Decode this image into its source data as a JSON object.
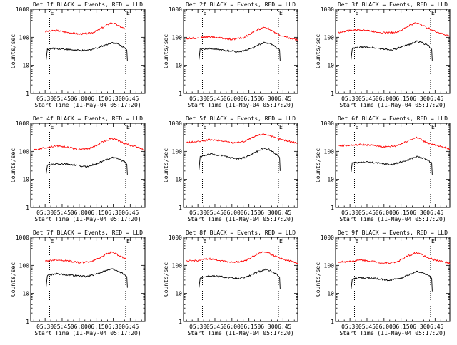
{
  "chart_data": [
    {
      "type": "line",
      "title": "Det 1f BLACK = Events, RED = LLD",
      "xlabel": "Start Time (11-May-04 05:17:20)",
      "ylabel": "Counts/sec",
      "yscale": "log",
      "ylim": [
        1,
        1000
      ],
      "y_ticks": [
        "1",
        "10",
        "100",
        "1000"
      ],
      "x_ticks": [
        "05:30",
        "05:45",
        "06:00",
        "06:15",
        "06:30",
        "06:45"
      ],
      "x_ticks_minutes": [
        30,
        45,
        60,
        75,
        90,
        105
      ],
      "x_range_minutes": [
        17.33,
        118
      ],
      "markers": [
        {
          "label": "E",
          "x_minutes": 34
        },
        {
          "label": "E",
          "x_minutes": 101
        }
      ],
      "series": [
        {
          "color": "#ff0000",
          "x_minutes": [
            30,
            40,
            50,
            60,
            70,
            76,
            82,
            88,
            92,
            96,
            101
          ],
          "values": [
            160,
            175,
            150,
            130,
            140,
            175,
            240,
            330,
            300,
            240,
            200
          ]
        },
        {
          "color": "#000000",
          "x_minutes": [
            31,
            32,
            40,
            50,
            60,
            66,
            72,
            78,
            84,
            89,
            94,
            99,
            102,
            102.5
          ],
          "values": [
            16,
            38,
            40,
            37,
            34,
            33,
            38,
            45,
            55,
            65,
            58,
            45,
            35,
            14
          ]
        }
      ]
    },
    {
      "type": "line",
      "title": "Det 2f BLACK = Events, RED = LLD",
      "xlabel": "Start Time (11-May-04 05:17:20)",
      "ylabel": "Counts/sec",
      "yscale": "log",
      "ylim": [
        1,
        1000
      ],
      "y_ticks": [
        "1",
        "10",
        "100",
        "1000"
      ],
      "x_ticks": [
        "05:30",
        "05:45",
        "06:00",
        "06:15",
        "06:30",
        "06:45"
      ],
      "x_ticks_minutes": [
        30,
        45,
        60,
        75,
        90,
        105
      ],
      "x_range_minutes": [
        17.33,
        118
      ],
      "markers": [
        {
          "label": "E",
          "x_minutes": 34
        },
        {
          "label": "E",
          "x_minutes": 101
        }
      ],
      "series": [
        {
          "color": "#ff0000",
          "x_minutes": [
            20,
            30,
            40,
            50,
            60,
            70,
            76,
            82,
            88,
            92,
            96,
            104,
            112,
            118
          ],
          "values": [
            90,
            95,
            105,
            95,
            85,
            95,
            130,
            180,
            230,
            210,
            160,
            110,
            90,
            80
          ]
        },
        {
          "color": "#000000",
          "x_minutes": [
            31,
            32,
            40,
            50,
            60,
            66,
            72,
            78,
            84,
            89,
            94,
            99,
            102,
            102.5
          ],
          "values": [
            16,
            38,
            40,
            36,
            32,
            30,
            35,
            40,
            55,
            65,
            58,
            45,
            35,
            14
          ]
        }
      ]
    },
    {
      "type": "line",
      "title": "Det 3f BLACK = Events, RED = LLD",
      "xlabel": "Start Time (11-May-04 05:17:20)",
      "ylabel": "Counts/sec",
      "yscale": "log",
      "ylim": [
        1,
        1000
      ],
      "y_ticks": [
        "1",
        "10",
        "100",
        "1000"
      ],
      "x_ticks": [
        "05:30",
        "05:45",
        "06:00",
        "06:15",
        "06:30",
        "06:45"
      ],
      "x_ticks_minutes": [
        30,
        45,
        60,
        75,
        90,
        105
      ],
      "x_range_minutes": [
        17.33,
        118
      ],
      "markers": [
        {
          "label": "E",
          "x_minutes": 34
        },
        {
          "label": "E",
          "x_minutes": 101
        }
      ],
      "series": [
        {
          "color": "#ff0000",
          "x_minutes": [
            20,
            30,
            40,
            50,
            60,
            70,
            76,
            82,
            88,
            92,
            96,
            104,
            112,
            118
          ],
          "values": [
            150,
            175,
            190,
            165,
            145,
            150,
            185,
            260,
            330,
            300,
            240,
            170,
            130,
            110
          ]
        },
        {
          "color": "#000000",
          "x_minutes": [
            31,
            32,
            40,
            50,
            60,
            66,
            72,
            78,
            84,
            89,
            94,
            99,
            102,
            102.5
          ],
          "values": [
            16,
            40,
            44,
            43,
            38,
            36,
            40,
            48,
            60,
            72,
            64,
            50,
            38,
            14
          ]
        }
      ]
    },
    {
      "type": "line",
      "title": "Det 4f BLACK = Events, RED = LLD",
      "xlabel": "Start Time (11-May-04 05:17:20)",
      "ylabel": "Counts/sec",
      "yscale": "log",
      "ylim": [
        1,
        1000
      ],
      "y_ticks": [
        "1",
        "10",
        "100",
        "1000"
      ],
      "x_ticks": [
        "05:30",
        "05:45",
        "06:00",
        "06:15",
        "06:30",
        "06:45"
      ],
      "x_ticks_minutes": [
        30,
        45,
        60,
        75,
        90,
        105
      ],
      "x_range_minutes": [
        17.33,
        118
      ],
      "markers": [
        {
          "label": "E",
          "x_minutes": 34
        },
        {
          "label": "E",
          "x_minutes": 101
        }
      ],
      "series": [
        {
          "color": "#ff0000",
          "x_minutes": [
            20,
            30,
            40,
            50,
            60,
            70,
            76,
            82,
            88,
            92,
            96,
            104,
            112,
            118
          ],
          "values": [
            110,
            135,
            160,
            140,
            115,
            130,
            170,
            230,
            290,
            270,
            220,
            170,
            140,
            110
          ]
        },
        {
          "color": "#000000",
          "x_minutes": [
            31,
            32,
            40,
            50,
            60,
            66,
            72,
            78,
            84,
            89,
            94,
            99,
            102,
            102.5
          ],
          "values": [
            16,
            32,
            36,
            35,
            31,
            28,
            33,
            40,
            50,
            62,
            55,
            45,
            35,
            14
          ]
        }
      ]
    },
    {
      "type": "line",
      "title": "Det 5f BLACK = Events, RED = LLD",
      "xlabel": "Start Time (11-May-04 05:17:20)",
      "ylabel": "Counts/sec",
      "yscale": "log",
      "ylim": [
        1,
        1000
      ],
      "y_ticks": [
        "1",
        "10",
        "100",
        "1000"
      ],
      "x_ticks": [
        "05:30",
        "05:45",
        "06:00",
        "06:15",
        "06:30",
        "06:45"
      ],
      "x_ticks_minutes": [
        30,
        45,
        60,
        75,
        90,
        105
      ],
      "x_range_minutes": [
        17.33,
        118
      ],
      "markers": [
        {
          "label": "E",
          "x_minutes": 34
        },
        {
          "label": "E",
          "x_minutes": 101
        }
      ],
      "series": [
        {
          "color": "#ff0000",
          "x_minutes": [
            20,
            30,
            40,
            50,
            60,
            70,
            76,
            82,
            88,
            92,
            96,
            104,
            112,
            118
          ],
          "values": [
            205,
            220,
            260,
            240,
            205,
            220,
            280,
            360,
            420,
            390,
            320,
            260,
            220,
            200
          ]
        },
        {
          "color": "#000000",
          "x_minutes": [
            31,
            32,
            40,
            50,
            60,
            66,
            72,
            78,
            84,
            89,
            94,
            99,
            102,
            102.5
          ],
          "values": [
            22,
            65,
            80,
            72,
            58,
            55,
            62,
            80,
            110,
            130,
            110,
            80,
            60,
            20
          ]
        }
      ]
    },
    {
      "type": "line",
      "title": "Det 6f BLACK = Events, RED = LLD",
      "xlabel": "Start Time (11-May-04 05:17:20)",
      "ylabel": "Counts/sec",
      "yscale": "log",
      "ylim": [
        1,
        1000
      ],
      "y_ticks": [
        "1",
        "10",
        "100",
        "1000"
      ],
      "x_ticks": [
        "05:30",
        "05:45",
        "06:00",
        "06:15",
        "06:30",
        "06:45"
      ],
      "x_ticks_minutes": [
        30,
        45,
        60,
        75,
        90,
        105
      ],
      "x_range_minutes": [
        17.33,
        118
      ],
      "markers": [
        {
          "label": "E",
          "x_minutes": 34
        },
        {
          "label": "E",
          "x_minutes": 101
        }
      ],
      "series": [
        {
          "color": "#ff0000",
          "x_minutes": [
            20,
            30,
            40,
            50,
            60,
            70,
            76,
            82,
            88,
            92,
            96,
            104,
            112,
            118
          ],
          "values": [
            160,
            165,
            175,
            165,
            145,
            155,
            190,
            250,
            310,
            280,
            220,
            170,
            140,
            120
          ]
        },
        {
          "color": "#000000",
          "x_minutes": [
            31,
            32,
            40,
            50,
            60,
            66,
            72,
            78,
            84,
            89,
            94,
            99,
            102,
            102.5
          ],
          "values": [
            18,
            38,
            42,
            40,
            36,
            34,
            38,
            45,
            55,
            65,
            58,
            48,
            38,
            14
          ]
        }
      ]
    },
    {
      "type": "line",
      "title": "Det 7f BLACK = Events, RED = LLD",
      "xlabel": "Start Time (11-May-04 05:17:20)",
      "ylabel": "Counts/sec",
      "yscale": "log",
      "ylim": [
        1,
        1000
      ],
      "y_ticks": [
        "1",
        "10",
        "100",
        "1000"
      ],
      "x_ticks": [
        "05:30",
        "05:45",
        "06:00",
        "06:15",
        "06:30",
        "06:45"
      ],
      "x_ticks_minutes": [
        30,
        45,
        60,
        75,
        90,
        105
      ],
      "x_range_minutes": [
        17.33,
        118
      ],
      "markers": [
        {
          "label": "E",
          "x_minutes": 34
        },
        {
          "label": "E",
          "x_minutes": 101
        }
      ],
      "series": [
        {
          "color": "#ff0000",
          "x_minutes": [
            30,
            40,
            50,
            60,
            70,
            76,
            82,
            88,
            92,
            96,
            101
          ],
          "values": [
            140,
            160,
            145,
            125,
            135,
            170,
            230,
            300,
            270,
            210,
            170
          ]
        },
        {
          "color": "#000000",
          "x_minutes": [
            31,
            32,
            40,
            50,
            60,
            66,
            72,
            78,
            84,
            89,
            94,
            99,
            102,
            102.5
          ],
          "values": [
            18,
            45,
            50,
            46,
            42,
            40,
            45,
            55,
            65,
            75,
            65,
            50,
            40,
            16
          ]
        }
      ]
    },
    {
      "type": "line",
      "title": "Det 8f BLACK = Events, RED = LLD",
      "xlabel": "Start Time (11-May-04 05:17:20)",
      "ylabel": "Counts/sec",
      "yscale": "log",
      "ylim": [
        1,
        1000
      ],
      "y_ticks": [
        "1",
        "10",
        "100",
        "1000"
      ],
      "x_ticks": [
        "05:30",
        "05:45",
        "06:00",
        "06:15",
        "06:30",
        "06:45"
      ],
      "x_ticks_minutes": [
        30,
        45,
        60,
        75,
        90,
        105
      ],
      "x_range_minutes": [
        17.33,
        118
      ],
      "markers": [
        {
          "label": "E",
          "x_minutes": 34
        },
        {
          "label": "E",
          "x_minutes": 101
        }
      ],
      "series": [
        {
          "color": "#ff0000",
          "x_minutes": [
            20,
            30,
            40,
            50,
            60,
            70,
            76,
            82,
            88,
            92,
            96,
            104,
            112,
            118
          ],
          "values": [
            140,
            150,
            170,
            150,
            130,
            140,
            180,
            250,
            310,
            290,
            230,
            170,
            140,
            120
          ]
        },
        {
          "color": "#000000",
          "x_minutes": [
            31,
            32,
            40,
            50,
            60,
            66,
            72,
            78,
            84,
            89,
            94,
            99,
            102,
            102.5
          ],
          "values": [
            16,
            36,
            42,
            40,
            35,
            33,
            38,
            47,
            60,
            72,
            64,
            50,
            38,
            14
          ]
        }
      ]
    },
    {
      "type": "line",
      "title": "Det 9f BLACK = Events, RED = LLD",
      "xlabel": "Start Time (11-May-04 05:17:20)",
      "ylabel": "Counts/sec",
      "yscale": "log",
      "ylim": [
        1,
        1000
      ],
      "y_ticks": [
        "1",
        "10",
        "100",
        "1000"
      ],
      "x_ticks": [
        "05:30",
        "05:45",
        "06:00",
        "06:15",
        "06:30",
        "06:45"
      ],
      "x_ticks_minutes": [
        30,
        45,
        60,
        75,
        90,
        105
      ],
      "x_range_minutes": [
        17.33,
        118
      ],
      "markers": [
        {
          "label": "E",
          "x_minutes": 34
        },
        {
          "label": "E",
          "x_minutes": 101
        }
      ],
      "series": [
        {
          "color": "#ff0000",
          "x_minutes": [
            20,
            30,
            40,
            50,
            60,
            70,
            76,
            82,
            88,
            92,
            96,
            104,
            112,
            118
          ],
          "values": [
            130,
            140,
            155,
            140,
            120,
            130,
            165,
            225,
            280,
            260,
            210,
            160,
            135,
            115
          ]
        },
        {
          "color": "#000000",
          "x_minutes": [
            31,
            32,
            40,
            50,
            60,
            66,
            72,
            78,
            84,
            89,
            94,
            99,
            102,
            102.5
          ],
          "values": [
            14,
            32,
            36,
            35,
            31,
            30,
            33,
            40,
            50,
            60,
            53,
            44,
            34,
            12
          ]
        }
      ]
    }
  ]
}
